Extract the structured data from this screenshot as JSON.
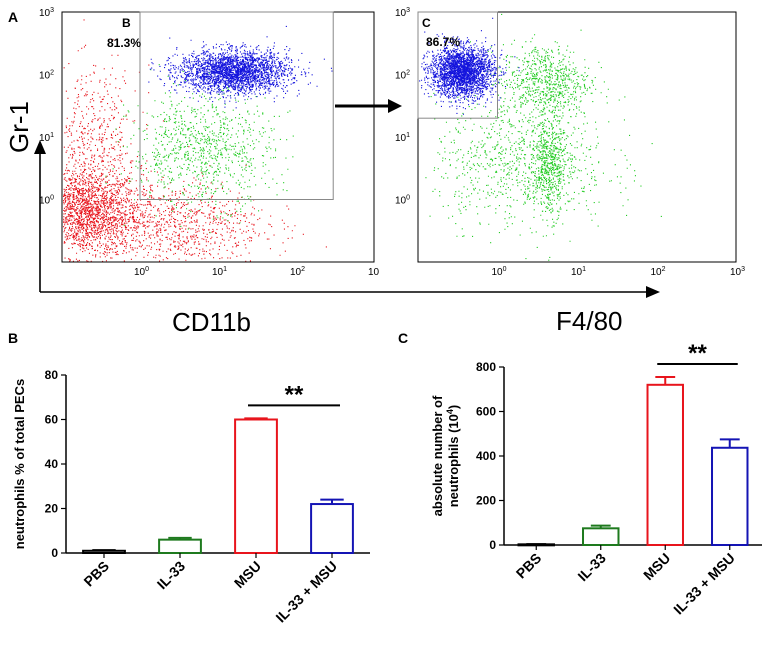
{
  "chart_data": [
    {
      "panel": "A",
      "type": "scatter",
      "subtype": "flow-cytometry-dot-plot",
      "plots": [
        {
          "gate_label": "B",
          "gate_percent": "81.3%",
          "x_scale": "log",
          "y_scale": "log",
          "xlim": [
            0.1,
            1000
          ],
          "ylim": [
            0.1,
            1000
          ],
          "x_ticks": [
            {
              "base": "10",
              "exp": "0"
            },
            {
              "base": "10",
              "exp": "1"
            },
            {
              "base": "10",
              "exp": "2"
            },
            {
              "base": "10",
              "exp": ""
            }
          ],
          "y_ticks": [
            {
              "base": "10",
              "exp": "0"
            },
            {
              "base": "10",
              "exp": "1"
            },
            {
              "base": "10",
              "exp": "2"
            },
            {
              "base": "10",
              "exp": "3"
            }
          ],
          "gate_range": {
            "x": [
              1,
              300
            ],
            "y": [
              1,
              1000
            ]
          },
          "populations": [
            {
              "name": "ungated",
              "color": "#e8141c",
              "x_log_center": -0.7,
              "y_log_center": -0.2,
              "x_log_spread": 0.35,
              "y_log_spread": 0.35,
              "count": 1900
            },
            {
              "name": "ungated-tail",
              "color": "#e8141c",
              "x_log_center": 0.4,
              "y_log_center": -0.4,
              "x_log_spread": 0.6,
              "y_log_spread": 0.35,
              "count": 900
            },
            {
              "name": "ungated-up",
              "color": "#e8141c",
              "x_log_center": -0.6,
              "y_log_center": 0.9,
              "x_log_spread": 0.3,
              "y_log_spread": 0.6,
              "count": 500
            },
            {
              "name": "gated-low",
              "color": "#22cc22",
              "x_log_center": 0.8,
              "y_log_center": 0.8,
              "x_log_spread": 0.45,
              "y_log_spread": 0.45,
              "count": 900
            },
            {
              "name": "gated-neutrophils",
              "color": "#1414dd",
              "x_log_center": 1.2,
              "y_log_center": 2.05,
              "x_log_spread": 0.35,
              "y_log_spread": 0.17,
              "count": 2600
            }
          ]
        },
        {
          "gate_label": "C",
          "gate_percent": "86.7%",
          "x_scale": "log",
          "y_scale": "log",
          "xlim": [
            0.1,
            1000
          ],
          "ylim": [
            0.1,
            1000
          ],
          "x_ticks": [
            {
              "base": "10",
              "exp": "0"
            },
            {
              "base": "10",
              "exp": "1"
            },
            {
              "base": "10",
              "exp": "2"
            },
            {
              "base": "10",
              "exp": "3"
            }
          ],
          "y_ticks": [
            {
              "base": "10",
              "exp": "0"
            },
            {
              "base": "10",
              "exp": "1"
            },
            {
              "base": "10",
              "exp": "2"
            },
            {
              "base": "10",
              "exp": "3"
            }
          ],
          "gate_range": {
            "x": [
              0.1,
              1
            ],
            "y": [
              20,
              1000
            ]
          },
          "populations": [
            {
              "name": "macrophage-like",
              "color": "#22cc22",
              "x_log_center": 0.6,
              "y_log_center": 1.9,
              "x_log_spread": 0.28,
              "y_log_spread": 0.3,
              "count": 700
            },
            {
              "name": "low-gr1",
              "color": "#22cc22",
              "x_log_center": 0.3,
              "y_log_center": 0.6,
              "x_log_spread": 0.55,
              "y_log_spread": 0.5,
              "count": 900
            },
            {
              "name": "f480-high",
              "color": "#22cc22",
              "x_log_center": 0.65,
              "y_log_center": 0.55,
              "x_log_spread": 0.1,
              "y_log_spread": 0.4,
              "count": 500
            },
            {
              "name": "neutrophils",
              "color": "#1414dd",
              "x_log_center": -0.45,
              "y_log_center": 2.05,
              "x_log_spread": 0.2,
              "y_log_spread": 0.2,
              "count": 2600
            }
          ]
        }
      ],
      "ylabel": "Gr-1",
      "xlabel_left": "CD11b",
      "xlabel_right": "F4/80"
    },
    {
      "panel": "B",
      "type": "bar",
      "categories": [
        "PBS",
        "IL-33",
        "MSU",
        "IL-33 + MSU"
      ],
      "values": [
        1,
        6,
        60,
        22
      ],
      "errors": [
        0.3,
        0.8,
        0.5,
        2
      ],
      "colors": [
        "#000000",
        "#1e7a1e",
        "#e8141c",
        "#1414b4"
      ],
      "ylabel": "neutrophils % of total PECs",
      "ylim": [
        0,
        80
      ],
      "yticks": [
        0,
        20,
        40,
        60,
        80
      ],
      "significance": {
        "from": 2,
        "to": 3,
        "label": "**"
      }
    },
    {
      "panel": "C",
      "type": "bar",
      "categories": [
        "PBS",
        "IL-33",
        "MSU",
        "IL-33 + MSU"
      ],
      "values": [
        3,
        75,
        720,
        437
      ],
      "errors": [
        1,
        12,
        35,
        38
      ],
      "colors": [
        "#000000",
        "#1e7a1e",
        "#e8141c",
        "#1414b4"
      ],
      "ylabel_line1": "absolute number of",
      "ylabel_line2_base": "neutrophils (10",
      "ylabel_line2_sup": "4",
      "ylabel_line2_end": ")",
      "ylim": [
        0,
        800
      ],
      "yticks": [
        0,
        200,
        400,
        600,
        800
      ],
      "significance": {
        "from": 2,
        "to": 3,
        "label": "**"
      }
    }
  ]
}
